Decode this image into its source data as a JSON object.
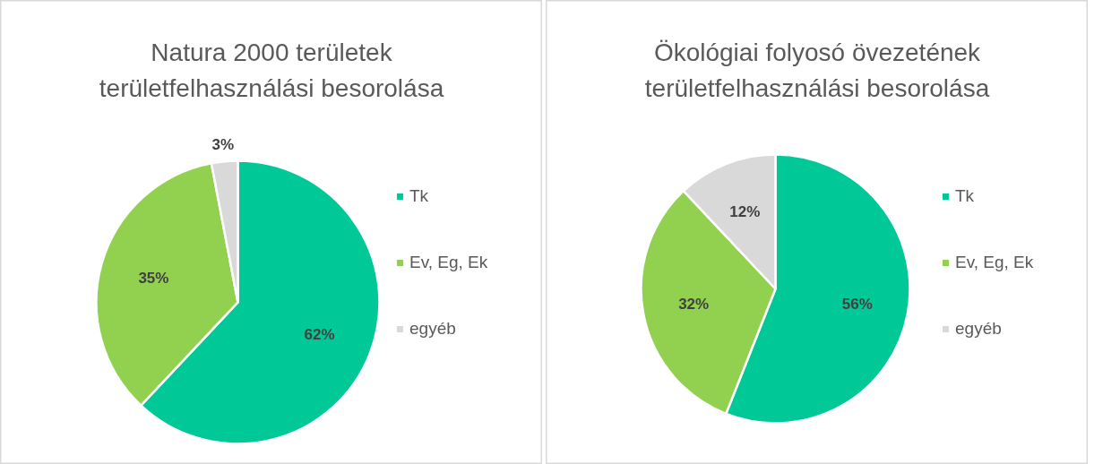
{
  "chart_data": [
    {
      "type": "pie",
      "title": "Natura 2000 területek területfelhasználási besorolása",
      "categories": [
        "Tk",
        "Ev, Eg, Ek",
        "egyéb"
      ],
      "values": [
        62,
        35,
        3
      ],
      "value_labels": [
        "62%",
        "35%",
        "3%"
      ],
      "colors": [
        "#00c896",
        "#92d050",
        "#d9d9d9"
      ],
      "legend": "right"
    },
    {
      "type": "pie",
      "title": "Ökológiai folyosó övezetének területfelhasználási besorolása",
      "categories": [
        "Tk",
        "Ev, Eg, Ek",
        "egyéb"
      ],
      "values": [
        56,
        32,
        12
      ],
      "value_labels": [
        "56%",
        "32%",
        "12%"
      ],
      "colors": [
        "#00c896",
        "#92d050",
        "#d9d9d9"
      ],
      "legend": "right"
    }
  ]
}
